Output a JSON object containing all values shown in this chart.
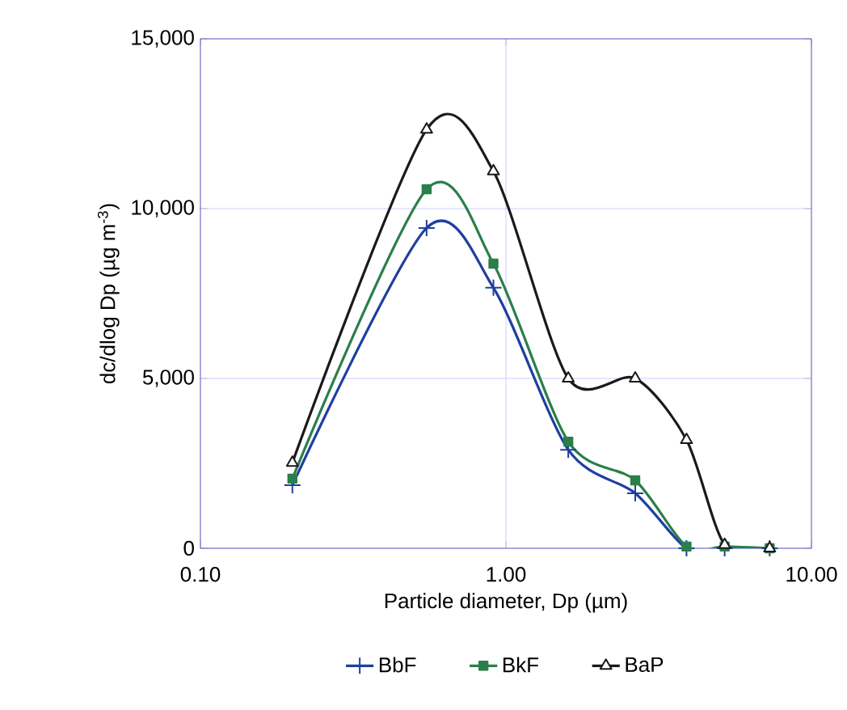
{
  "chart_data": {
    "type": "line",
    "xlabel": "Particle diameter, Dp (µm)",
    "ylabel": "dc/dlog Dp (µg m$^{-3}$)",
    "x": [
      0.2,
      0.55,
      0.91,
      1.6,
      2.65,
      3.9,
      5.2,
      7.3
    ],
    "series": [
      {
        "name": "BbF",
        "color": "#1f3f9f",
        "marker": "cross",
        "values": [
          1860,
          9430,
          7670,
          2900,
          1620,
          0,
          0,
          0
        ]
      },
      {
        "name": "BkF",
        "color": "#2a7f4a",
        "marker": "square",
        "values": [
          2050,
          10570,
          8380,
          3140,
          2000,
          50,
          50,
          0
        ]
      },
      {
        "name": "BaP",
        "color": "#1a1a1a",
        "marker": "triangle",
        "values": [
          2520,
          12330,
          11100,
          5000,
          5000,
          3190,
          100,
          0
        ]
      }
    ],
    "log": "x",
    "grid": true,
    "legend": "bottom",
    "line_style": "solid",
    "xlim": [
      0.1,
      10
    ],
    "xticks": [
      {
        "value": 0.1,
        "label": "0.10"
      },
      {
        "value": 1,
        "label": "1.00"
      },
      {
        "value": 10,
        "label": "10.00"
      }
    ],
    "ylim": [
      0,
      15000
    ],
    "yticks": [
      0,
      {
        "value": 5000,
        "label": "5,000"
      },
      {
        "value": 10000,
        "label": "10,000"
      },
      {
        "value": 15000,
        "label": "15,000"
      }
    ]
  }
}
